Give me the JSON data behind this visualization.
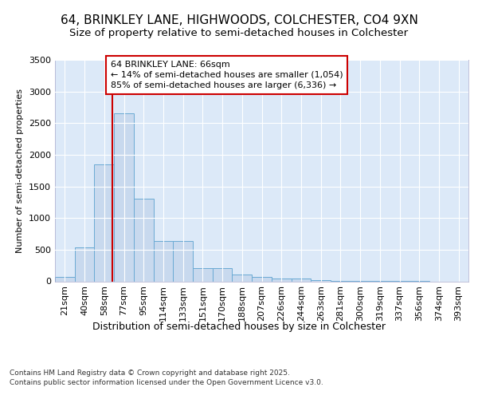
{
  "title1": "64, BRINKLEY LANE, HIGHWOODS, COLCHESTER, CO4 9XN",
  "title2": "Size of property relative to semi-detached houses in Colchester",
  "xlabel": "Distribution of semi-detached houses by size in Colchester",
  "ylabel": "Number of semi-detached properties",
  "footnote": "Contains HM Land Registry data © Crown copyright and database right 2025.\nContains public sector information licensed under the Open Government Licence v3.0.",
  "bin_labels": [
    "21sqm",
    "40sqm",
    "58sqm",
    "77sqm",
    "95sqm",
    "114sqm",
    "133sqm",
    "151sqm",
    "170sqm",
    "188sqm",
    "207sqm",
    "226sqm",
    "244sqm",
    "263sqm",
    "281sqm",
    "300sqm",
    "319sqm",
    "337sqm",
    "356sqm",
    "374sqm",
    "393sqm"
  ],
  "bar_values": [
    75,
    530,
    1850,
    2650,
    1300,
    640,
    640,
    210,
    210,
    105,
    65,
    50,
    40,
    20,
    8,
    4,
    2,
    1,
    1,
    0,
    0
  ],
  "bar_color": "#c8d9ee",
  "bar_edge_color": "#6aaad4",
  "line_color": "#cc0000",
  "annotation_box_color": "#ffffff",
  "annotation_box_edge": "#cc0000",
  "property_label": "64 BRINKLEY LANE: 66sqm",
  "pct_smaller": 14,
  "count_smaller": 1054,
  "pct_larger": 85,
  "count_larger": 6336,
  "ylim": [
    0,
    3500
  ],
  "yticks": [
    0,
    500,
    1000,
    1500,
    2000,
    2500,
    3000,
    3500
  ],
  "bg_color": "#ffffff",
  "plot_bg_color": "#dce9f8",
  "grid_color": "#ffffff",
  "title1_fontsize": 11,
  "title2_fontsize": 9.5,
  "xlabel_fontsize": 9,
  "ylabel_fontsize": 8,
  "tick_fontsize": 8,
  "annot_fontsize": 8,
  "footnote_fontsize": 6.5
}
